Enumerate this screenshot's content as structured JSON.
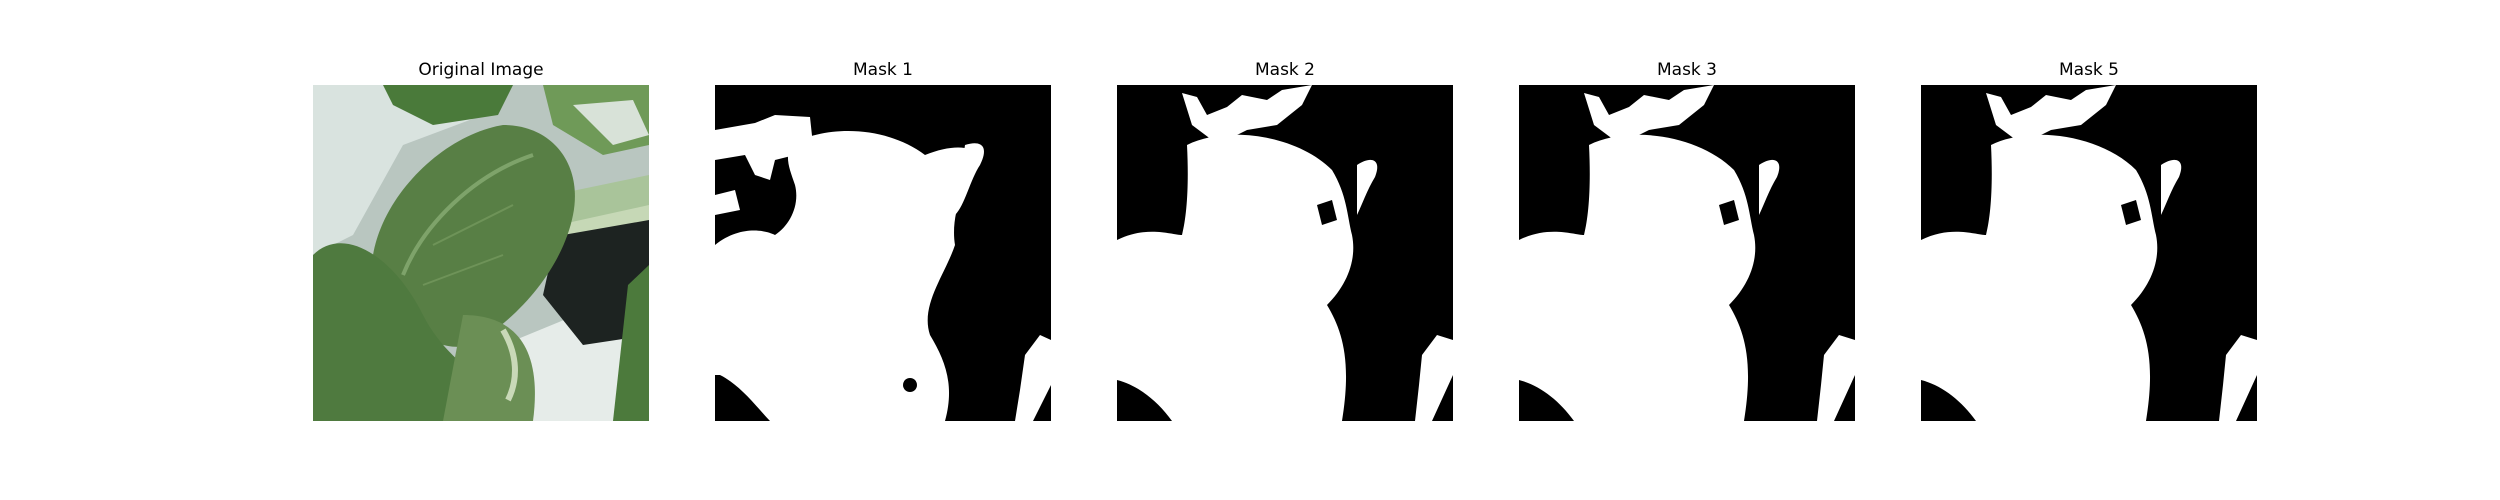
{
  "figure": {
    "panels": [
      {
        "title": "Original Image",
        "kind": "photo",
        "subject": "leaf-photo"
      },
      {
        "title": "Mask 1",
        "kind": "binary-mask",
        "foreground": "#ffffff",
        "background": "#000000"
      },
      {
        "title": "Mask 2",
        "kind": "binary-mask",
        "foreground": "#ffffff",
        "background": "#000000"
      },
      {
        "title": "Mask 3",
        "kind": "binary-mask",
        "foreground": "#ffffff",
        "background": "#000000"
      },
      {
        "title": "Mask 5",
        "kind": "binary-mask",
        "foreground": "#ffffff",
        "background": "#000000"
      }
    ]
  }
}
